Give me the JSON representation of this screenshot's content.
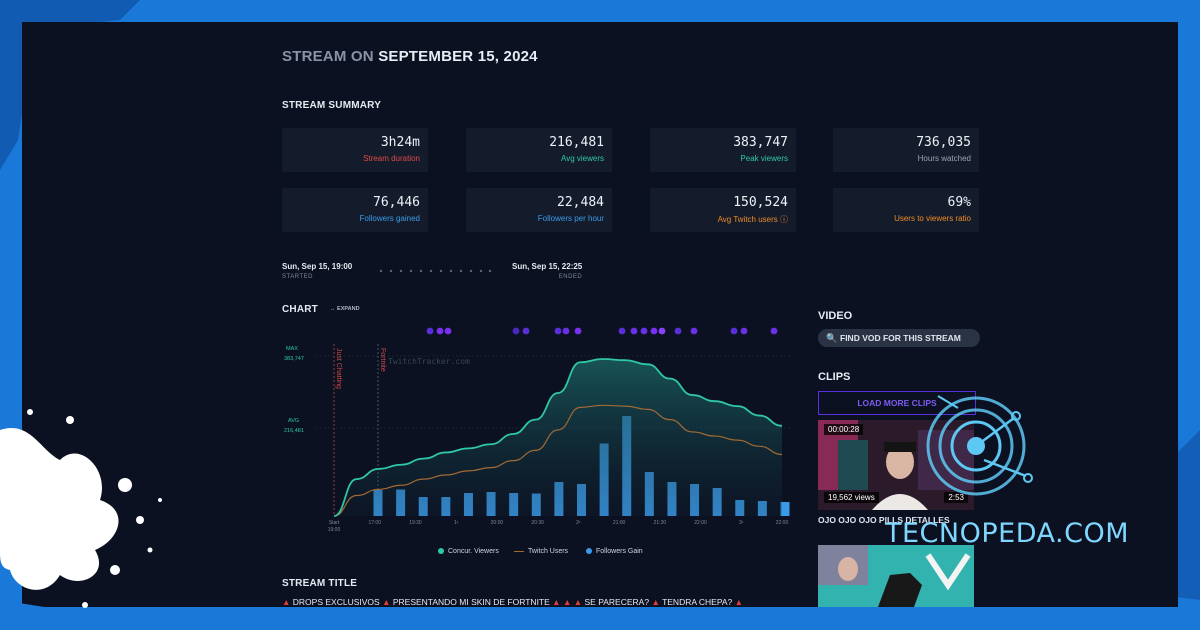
{
  "page": {
    "title_prefix": "STREAM ON",
    "title_date": "SEPTEMBER 15, 2024"
  },
  "summary": {
    "heading": "STREAM SUMMARY",
    "cards": [
      {
        "value": "3h24m",
        "label": "Stream duration",
        "color": "#e04848"
      },
      {
        "value": "216,481",
        "label": "Avg viewers",
        "color": "#2fc7a6"
      },
      {
        "value": "383,747",
        "label": "Peak viewers",
        "color": "#2fc7a6"
      },
      {
        "value": "736,035",
        "label": "Hours watched",
        "color": "#9aa3b5"
      },
      {
        "value": "76,446",
        "label": "Followers gained",
        "color": "#3a9ae8"
      },
      {
        "value": "22,484",
        "label": "Followers per hour",
        "color": "#3a9ae8"
      },
      {
        "value": "150,524",
        "label": "Avg Twitch users ⓘ",
        "color": "#f08a24"
      },
      {
        "value": "69%",
        "label": "Users to viewers ratio",
        "color": "#f08a24"
      }
    ]
  },
  "timeline": {
    "start": "Sun, Sep 15, 19:00",
    "start_sub": "STARTED",
    "end": "Sun, Sep 15, 22:25",
    "end_sub": "ENDED"
  },
  "chart_section": {
    "heading": "CHART",
    "expand_label": "↔ EXPAND",
    "max_label": "MAX",
    "max_value": "383,747",
    "avg_label": "AVG",
    "avg_value": "216,481",
    "watermark": "TwitchTracker.com",
    "game_markers": [
      "Just Chatting",
      "Fortnite"
    ]
  },
  "chart_data": {
    "type": "line",
    "x_tick_labels": [
      "Start",
      "17:00",
      "19:30",
      "1¹",
      "20:00",
      "20:30",
      "2¹",
      "21:00",
      "21:30",
      "22:00",
      "3¹",
      "22:00"
    ],
    "x_tick_sub": [
      "19:00",
      "",
      "",
      "",
      "",
      "",
      "",
      "",
      "",
      "",
      "",
      ""
    ],
    "ylim": [
      0,
      400000
    ],
    "series": [
      {
        "name": "Concur. Viewers",
        "type": "area",
        "color": "#2fc7a6",
        "values": [
          0,
          90000,
          115000,
          125000,
          140000,
          155000,
          165000,
          175000,
          200000,
          235000,
          300000,
          375000,
          383000,
          380000,
          370000,
          335000,
          295000,
          280000,
          268000,
          245000,
          220000
        ]
      },
      {
        "name": "Twitch Users",
        "type": "line",
        "color": "#a26a34",
        "values": [
          0,
          50000,
          65000,
          75000,
          90000,
          100000,
          110000,
          118000,
          135000,
          160000,
          210000,
          265000,
          270000,
          268000,
          260000,
          235000,
          205000,
          195000,
          185000,
          170000,
          150000
        ]
      },
      {
        "name": "Followers Gain",
        "type": "bar",
        "color": "#3a9ae8",
        "values": [
          5200,
          5300,
          3800,
          3800,
          4600,
          4800,
          4600,
          4500,
          6800,
          6400,
          14500,
          20000,
          8800,
          6800,
          6400,
          5600,
          3200,
          3000,
          2800
        ]
      }
    ],
    "event_dots": [
      {
        "pos": 0.12,
        "color": "#5a2fd8"
      },
      {
        "pos": 0.145,
        "color": "#7a30f0"
      },
      {
        "pos": 0.165,
        "color": "#7a30f0"
      },
      {
        "pos": 0.335,
        "color": "#4a28c0"
      },
      {
        "pos": 0.36,
        "color": "#5a2fd8"
      },
      {
        "pos": 0.44,
        "color": "#5a2fd8"
      },
      {
        "pos": 0.46,
        "color": "#6a30e8"
      },
      {
        "pos": 0.49,
        "color": "#7a30f0"
      },
      {
        "pos": 0.6,
        "color": "#5a2fd8"
      },
      {
        "pos": 0.63,
        "color": "#6a30e8"
      },
      {
        "pos": 0.655,
        "color": "#6a30e8"
      },
      {
        "pos": 0.68,
        "color": "#7a30f0"
      },
      {
        "pos": 0.7,
        "color": "#8a40ff"
      },
      {
        "pos": 0.74,
        "color": "#5a2fd8"
      },
      {
        "pos": 0.78,
        "color": "#6a30e8"
      },
      {
        "pos": 0.88,
        "color": "#5a2fd8"
      },
      {
        "pos": 0.905,
        "color": "#6a30e8"
      },
      {
        "pos": 0.98,
        "color": "#6a30e8"
      }
    ]
  },
  "sidebar": {
    "video_heading": "VIDEO",
    "vod_button": "FIND VOD FOR THIS STREAM",
    "clips_heading": "CLIPS",
    "load_more": "LOAD MORE CLIPS",
    "clip": {
      "views": "19,562 views",
      "duration": "2:53",
      "timestamp": "00:00:28",
      "title": "OJO OJO OJO PILLS DETALLES"
    }
  },
  "stream_title": {
    "heading": "STREAM TITLE",
    "segments": [
      "▲",
      " DROPS EXCLUSIVOS ",
      "▲",
      " PRESENTANDO MI SKIN DE FORTNITE ",
      "▲ ▲ ▲",
      " SE PARECERA? ",
      "▲",
      " TENDRA CHEPA? ",
      "▲"
    ]
  },
  "watermark": {
    "brand": "TECNOPEDA.COM"
  }
}
